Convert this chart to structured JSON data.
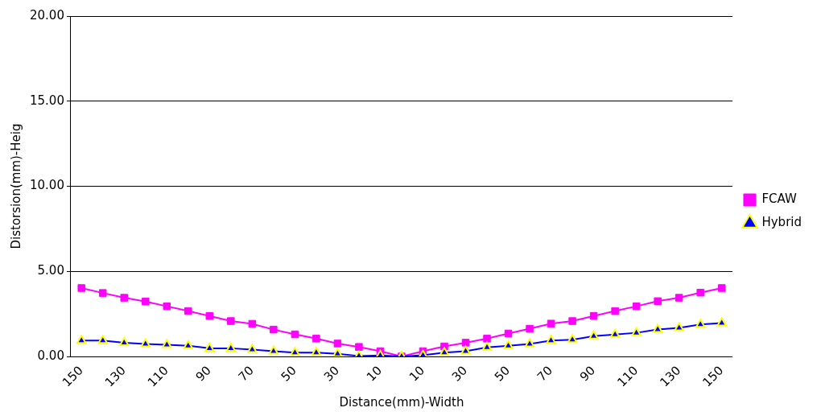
{
  "chart_data": {
    "type": "line",
    "xlabel": "Distance(mm)-Width",
    "ylabel": "Distorsion(mm)-Heig",
    "categories": [
      "150",
      null,
      "130",
      null,
      "110",
      null,
      "90",
      null,
      "70",
      null,
      "50",
      null,
      "30",
      null,
      "10",
      null,
      "10",
      null,
      "30",
      null,
      "50",
      null,
      "70",
      null,
      "90",
      null,
      "110",
      null,
      "130",
      null,
      "150"
    ],
    "series": [
      {
        "name": "FCAW",
        "color": "#ff00ff",
        "marker": "square",
        "values": [
          4.02,
          3.73,
          3.45,
          3.23,
          2.95,
          2.67,
          2.38,
          2.08,
          1.92,
          1.58,
          1.3,
          1.05,
          0.76,
          0.56,
          0.31,
          0,
          0.31,
          0.59,
          0.81,
          1.05,
          1.35,
          1.63,
          1.93,
          2.08,
          2.38,
          2.67,
          2.95,
          3.25,
          3.45,
          3.75,
          4.02
        ]
      },
      {
        "name": "Hybrid",
        "color": "#0000ff",
        "marker": "triangle",
        "values": [
          0.93,
          0.93,
          0.81,
          0.73,
          0.69,
          0.63,
          0.48,
          0.48,
          0.4,
          0.31,
          0.23,
          0.23,
          0.15,
          0.03,
          0.06,
          0,
          0.07,
          0.23,
          0.31,
          0.53,
          0.63,
          0.73,
          0.93,
          0.98,
          1.19,
          1.29,
          1.39,
          1.58,
          1.68,
          1.88,
          1.96
        ]
      }
    ],
    "ylim": [
      0,
      20
    ],
    "yticks": [
      {
        "value": 0,
        "label": "0.00"
      },
      {
        "value": 5,
        "label": "5.00"
      },
      {
        "value": 10,
        "label": "10.00"
      },
      {
        "value": 15,
        "label": "15.00"
      },
      {
        "value": 20,
        "label": "20.00"
      }
    ],
    "grid": "y",
    "legend": "right",
    "line_style": "solid"
  }
}
